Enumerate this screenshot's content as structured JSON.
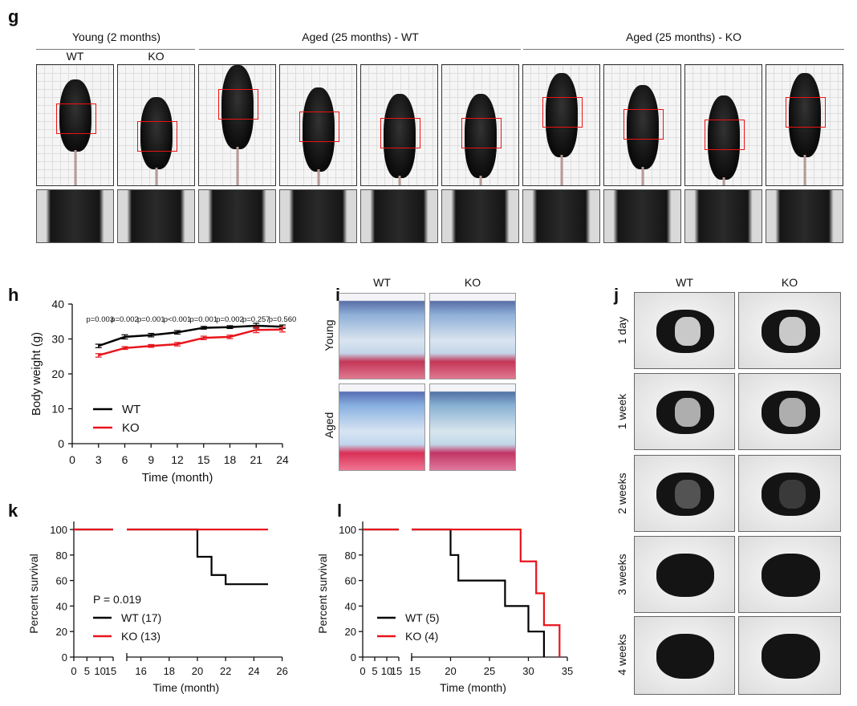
{
  "panels": {
    "g": "g",
    "h": "h",
    "i": "i",
    "j": "j",
    "k": "k",
    "l": "l"
  },
  "g": {
    "groups": [
      "Young (2 months)",
      "Aged (25 months) - WT",
      "Aged (25 months) - KO"
    ],
    "young_sub": [
      "WT",
      "KO"
    ]
  },
  "i": {
    "columns": [
      "WT",
      "KO"
    ],
    "rows": [
      "Young",
      "Aged"
    ]
  },
  "j": {
    "columns": [
      "WT",
      "KO"
    ],
    "rows": [
      "1 day",
      "1 week",
      "2 weeks",
      "3 weeks",
      "4 weeks"
    ]
  },
  "colors": {
    "wt": "#000000",
    "ko": "#e8141b"
  },
  "chart_data": [
    {
      "id": "h",
      "type": "line",
      "xlabel": "Time (month)",
      "ylabel": "Body weight (g)",
      "xlim": [
        0,
        24
      ],
      "ylim": [
        0,
        40
      ],
      "xticks": [
        0,
        3,
        6,
        9,
        12,
        15,
        18,
        21,
        24
      ],
      "yticks": [
        0,
        10,
        20,
        30,
        40
      ],
      "x": [
        3,
        6,
        9,
        12,
        15,
        18,
        21,
        24
      ],
      "series": [
        {
          "name": "WT",
          "values": [
            28.0,
            30.6,
            31.1,
            31.9,
            33.2,
            33.4,
            33.8,
            33.5
          ],
          "err": [
            0.5,
            0.6,
            0.5,
            0.5,
            0.4,
            0.4,
            0.7,
            0.5
          ]
        },
        {
          "name": "KO",
          "values": [
            25.3,
            27.4,
            28.0,
            28.5,
            30.3,
            30.6,
            32.6,
            32.7
          ],
          "err": [
            0.5,
            0.4,
            0.4,
            0.5,
            0.5,
            0.5,
            0.8,
            0.7
          ]
        }
      ],
      "annotations": [
        "p=0.003",
        "p=0.002",
        "p=0.001",
        "p<0.001",
        "p=0.001",
        "p=0.002",
        "p=0.257",
        "p=0.560"
      ],
      "legend": [
        "WT",
        "KO"
      ]
    },
    {
      "id": "k",
      "type": "line",
      "xlabel": "Time (month)",
      "ylabel": "Percent survival",
      "ylim": [
        0,
        100
      ],
      "xticks_left": [
        0,
        5,
        10,
        15
      ],
      "xticks_right": [
        16,
        18,
        20,
        22,
        24,
        26
      ],
      "yticks": [
        0,
        20,
        40,
        60,
        80,
        100
      ],
      "series": [
        {
          "name": "WT (17)",
          "steps": [
            [
              0,
              100
            ],
            [
              20,
              100
            ],
            [
              20,
              78.6
            ],
            [
              21,
              78.6
            ],
            [
              21,
              64.3
            ],
            [
              22,
              64.3
            ],
            [
              22,
              57.1
            ],
            [
              25,
              57.1
            ]
          ]
        },
        {
          "name": "KO (13)",
          "steps": [
            [
              0,
              100
            ],
            [
              25,
              100
            ]
          ]
        }
      ],
      "annotation": "P = 0.019",
      "legend": [
        "WT (17)",
        "KO (13)"
      ]
    },
    {
      "id": "l",
      "type": "line",
      "xlabel": "Time (month)",
      "ylabel": "Percent survival",
      "ylim": [
        0,
        100
      ],
      "xticks_left": [
        0,
        5,
        10,
        15
      ],
      "xticks_right": [
        15,
        20,
        25,
        30,
        35
      ],
      "yticks": [
        0,
        20,
        40,
        60,
        80,
        100
      ],
      "series": [
        {
          "name": "WT (5)",
          "steps": [
            [
              0,
              100
            ],
            [
              20,
              100
            ],
            [
              20,
              80
            ],
            [
              21,
              80
            ],
            [
              21,
              60
            ],
            [
              27,
              60
            ],
            [
              27,
              40
            ],
            [
              30,
              40
            ],
            [
              30,
              20
            ],
            [
              32,
              20
            ],
            [
              32,
              0
            ]
          ]
        },
        {
          "name": "KO (4)",
          "steps": [
            [
              0,
              100
            ],
            [
              29,
              100
            ],
            [
              29,
              75
            ],
            [
              31,
              75
            ],
            [
              31,
              50
            ],
            [
              32,
              50
            ],
            [
              32,
              25
            ],
            [
              34,
              25
            ],
            [
              34,
              0
            ]
          ]
        }
      ],
      "legend": [
        "WT (5)",
        "KO (4)"
      ]
    }
  ]
}
